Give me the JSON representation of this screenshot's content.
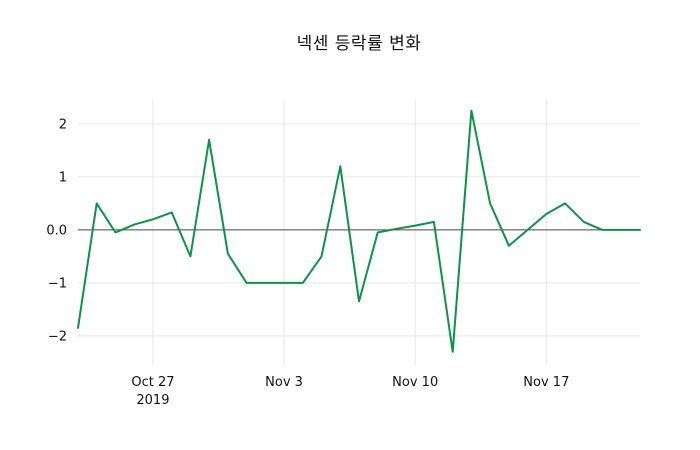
{
  "figure": {
    "background": "#ffffff"
  },
  "chart_data": {
    "type": "line",
    "title": "넥센 등락률 변화",
    "series_name": "등락률",
    "legend": "none",
    "grid": true,
    "line_color": "#0c9347",
    "grid_color": "#e6e6e6",
    "zero_line_color": "#4a4a4a",
    "text_color": "#111111",
    "ylim": [
      -2.55,
      2.45
    ],
    "x": [
      "2019-10-23",
      "2019-10-24",
      "2019-10-25",
      "2019-10-26",
      "2019-10-27",
      "2019-10-28",
      "2019-10-29",
      "2019-10-30",
      "2019-10-31",
      "2019-11-01",
      "2019-11-02",
      "2019-11-03",
      "2019-11-04",
      "2019-11-05",
      "2019-11-06",
      "2019-11-07",
      "2019-11-08",
      "2019-11-09",
      "2019-11-10",
      "2019-11-11",
      "2019-11-12",
      "2019-11-13",
      "2019-11-14",
      "2019-11-15",
      "2019-11-16",
      "2019-11-17",
      "2019-11-18",
      "2019-11-19",
      "2019-11-20",
      "2019-11-21",
      "2019-11-22"
    ],
    "values": [
      -1.85,
      0.5,
      -0.05,
      0.1,
      0.2,
      0.33,
      -0.5,
      1.7,
      -0.45,
      -1.0,
      -1.0,
      -1.0,
      -1.0,
      -0.5,
      1.2,
      -1.35,
      -0.05,
      0.02,
      0.08,
      0.15,
      -2.3,
      2.25,
      0.5,
      -0.3,
      0.0,
      0.3,
      0.5,
      0.15,
      0.0,
      0.0,
      0.0
    ],
    "yticks": {
      "values": [
        2,
        1,
        0,
        -1,
        -2
      ],
      "labels": [
        "2",
        "1",
        "0.0",
        "−1",
        "−2"
      ]
    },
    "xticks": [
      {
        "date": "2019-10-27",
        "lines": [
          "Oct 27",
          "2019"
        ]
      },
      {
        "date": "2019-11-03",
        "lines": [
          "Nov 3"
        ]
      },
      {
        "date": "2019-11-10",
        "lines": [
          "Nov 10"
        ]
      },
      {
        "date": "2019-11-17",
        "lines": [
          "Nov 17"
        ]
      }
    ]
  }
}
